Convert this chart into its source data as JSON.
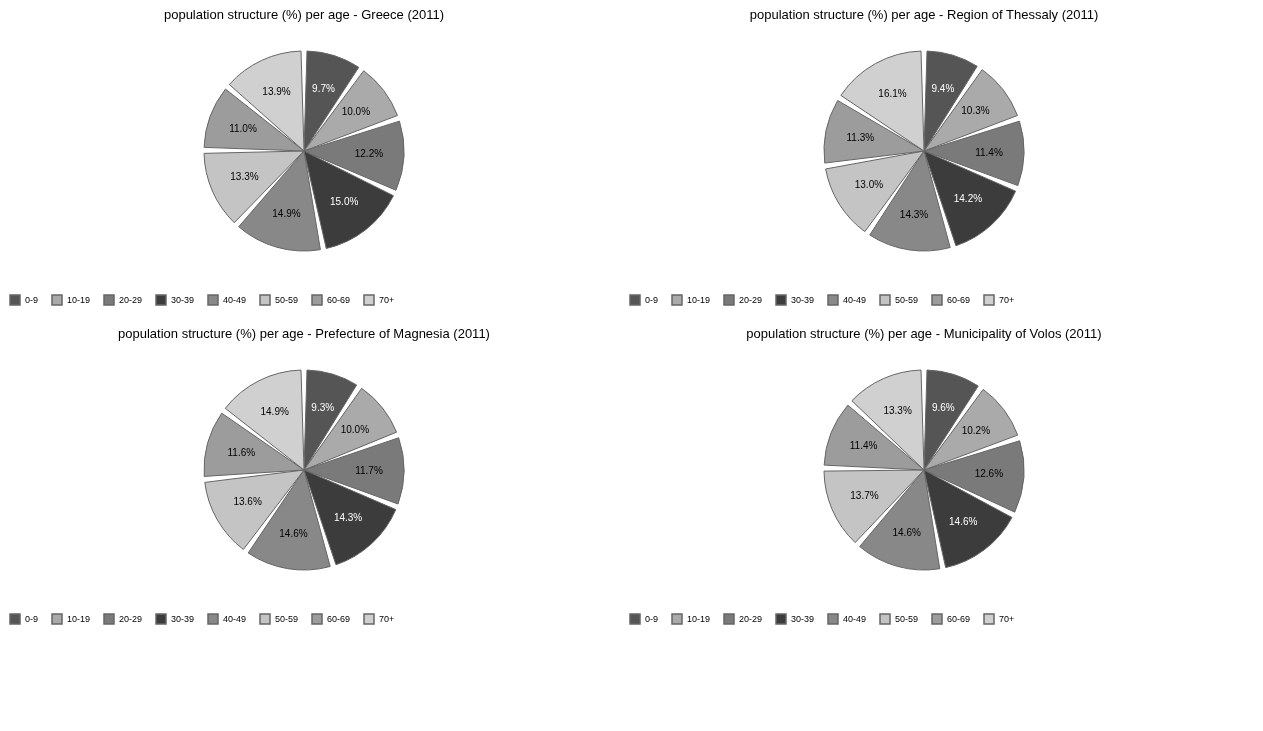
{
  "chart_data": [
    {
      "type": "pie",
      "title": "population structure (%) per age - Greece (2011)",
      "categories": [
        "0-9",
        "10-19",
        "20-29",
        "30-39",
        "40-49",
        "50-59",
        "60-69",
        "70+"
      ],
      "values": [
        9.7,
        10.0,
        12.2,
        15.0,
        14.9,
        13.3,
        11.0,
        13.9
      ],
      "value_labels": [
        "9.7%",
        "10.0%",
        "12.2%",
        "15.0%",
        "14.9%",
        "13.3%",
        "11.0%",
        "13.9%"
      ],
      "colors": [
        "#555555",
        "#aaaaaa",
        "#7a7a7a",
        "#3c3c3c",
        "#888888",
        "#c4c4c4",
        "#9c9c9c",
        "#d0d0d0"
      ],
      "legend": "bottom"
    },
    {
      "type": "pie",
      "title": "population structure (%) per age - Region of Thessaly (2011)",
      "categories": [
        "0-9",
        "10-19",
        "20-29",
        "30-39",
        "40-49",
        "50-59",
        "60-69",
        "70+"
      ],
      "values": [
        9.4,
        10.3,
        11.4,
        14.2,
        14.3,
        13.0,
        11.3,
        16.1
      ],
      "value_labels": [
        "9.4%",
        "10.3%",
        "11.4%",
        "14.2%",
        "14.3%",
        "13.0%",
        "11.3%",
        "16.1%"
      ],
      "colors": [
        "#555555",
        "#aaaaaa",
        "#7a7a7a",
        "#3c3c3c",
        "#888888",
        "#c4c4c4",
        "#9c9c9c",
        "#d0d0d0"
      ],
      "legend": "bottom"
    },
    {
      "type": "pie",
      "title": "population structure (%) per age - Prefecture of Magnesia (2011)",
      "categories": [
        "0-9",
        "10-19",
        "20-29",
        "30-39",
        "40-49",
        "50-59",
        "60-69",
        "70+"
      ],
      "values": [
        9.3,
        10.0,
        11.7,
        14.3,
        14.6,
        13.6,
        11.6,
        14.9
      ],
      "value_labels": [
        "9.3%",
        "10.0%",
        "11.7%",
        "14.3%",
        "14.6%",
        "13.6%",
        "11.6%",
        "14.9%"
      ],
      "colors": [
        "#555555",
        "#aaaaaa",
        "#7a7a7a",
        "#3c3c3c",
        "#888888",
        "#c4c4c4",
        "#9c9c9c",
        "#d0d0d0"
      ],
      "legend": "bottom"
    },
    {
      "type": "pie",
      "title": "population structure (%) per age - Municipality of Volos (2011)",
      "categories": [
        "0-9",
        "10-19",
        "20-29",
        "30-39",
        "40-49",
        "50-59",
        "60-69",
        "70+"
      ],
      "values": [
        9.6,
        10.2,
        12.6,
        14.6,
        14.6,
        13.7,
        11.4,
        13.3
      ],
      "value_labels": [
        "9.6%",
        "10.2%",
        "12.6%",
        "14.6%",
        "14.6%",
        "13.7%",
        "11.4%",
        "13.3%"
      ],
      "colors": [
        "#555555",
        "#aaaaaa",
        "#7a7a7a",
        "#3c3c3c",
        "#888888",
        "#c4c4c4",
        "#9c9c9c",
        "#d0d0d0"
      ],
      "legend": "bottom"
    }
  ]
}
